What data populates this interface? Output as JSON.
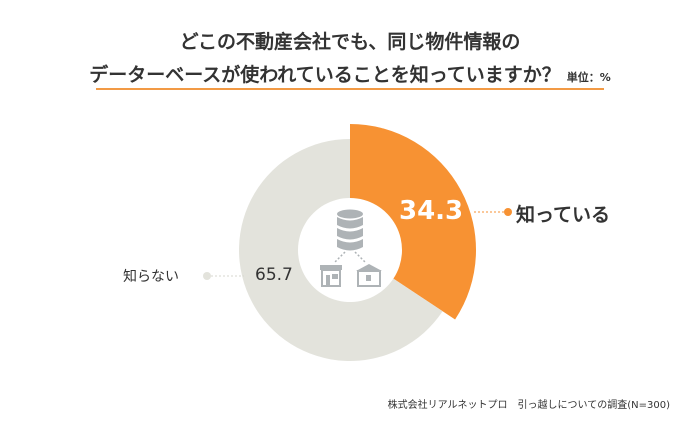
{
  "title_line1": "どこの不動産会社でも、同じ物件情報の",
  "title_line2": "データーベースが使われていることを知っていますか？",
  "unit": "単位：%",
  "source": "株式会社リアルネットプロ　引っ越しについての調査(N=300)",
  "chart_data": {
    "type": "pie",
    "categories": [
      "知っている",
      "知らない"
    ],
    "values": [
      34.3,
      65.7
    ],
    "colors": [
      "#f79233",
      "#e3e3dc"
    ],
    "title": "どこの不動産会社でも、同じ物件情報のデーターベースが使われていることを知っていますか？",
    "legend": "none"
  },
  "icons": [
    "database-icon",
    "shop-icon",
    "house-icon"
  ]
}
